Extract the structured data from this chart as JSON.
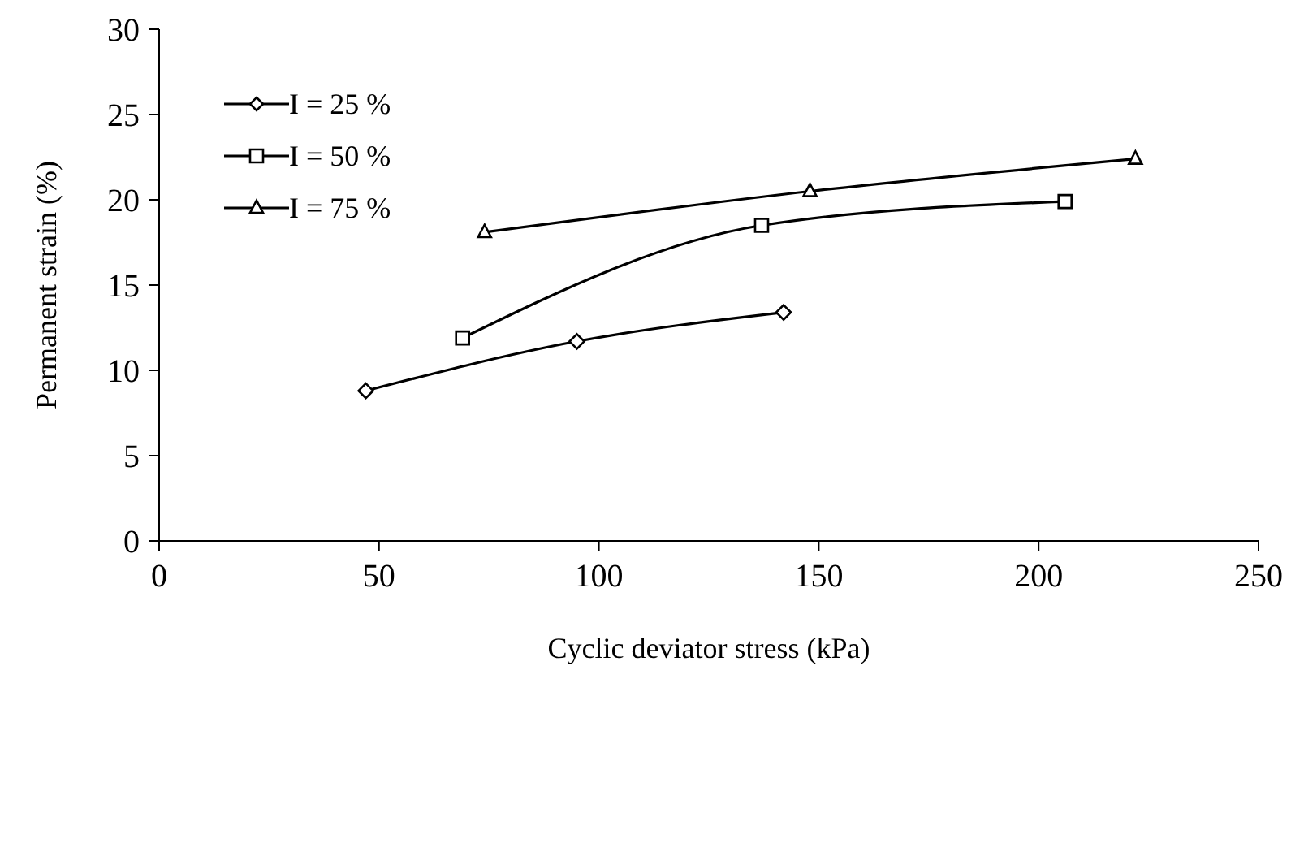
{
  "chart_data": {
    "type": "line",
    "xlabel": "Cyclic deviator stress (kPa)",
    "ylabel": "Permanent  strain (%)",
    "xlim": [
      0,
      250
    ],
    "xticks": [
      0,
      50,
      100,
      150,
      200,
      250
    ],
    "ylim": [
      0,
      30
    ],
    "yticks": [
      0,
      5,
      10,
      15,
      20,
      25,
      30
    ],
    "grid": false,
    "legend": "top left",
    "line_style": "solid",
    "series": [
      {
        "name": "I = 25 %",
        "color": "#000000",
        "marker": "diamond",
        "x": [
          47,
          95,
          142
        ],
        "values": [
          8.8,
          11.7,
          13.4
        ]
      },
      {
        "name": "I = 50 %",
        "color": "#000000",
        "marker": "square",
        "x": [
          69,
          137,
          206
        ],
        "values": [
          11.9,
          18.5,
          19.9
        ]
      },
      {
        "name": "I = 75 %",
        "color": "#000000",
        "marker": "triangle",
        "x": [
          74,
          148,
          222
        ],
        "values": [
          18.1,
          20.5,
          22.4
        ]
      }
    ]
  }
}
